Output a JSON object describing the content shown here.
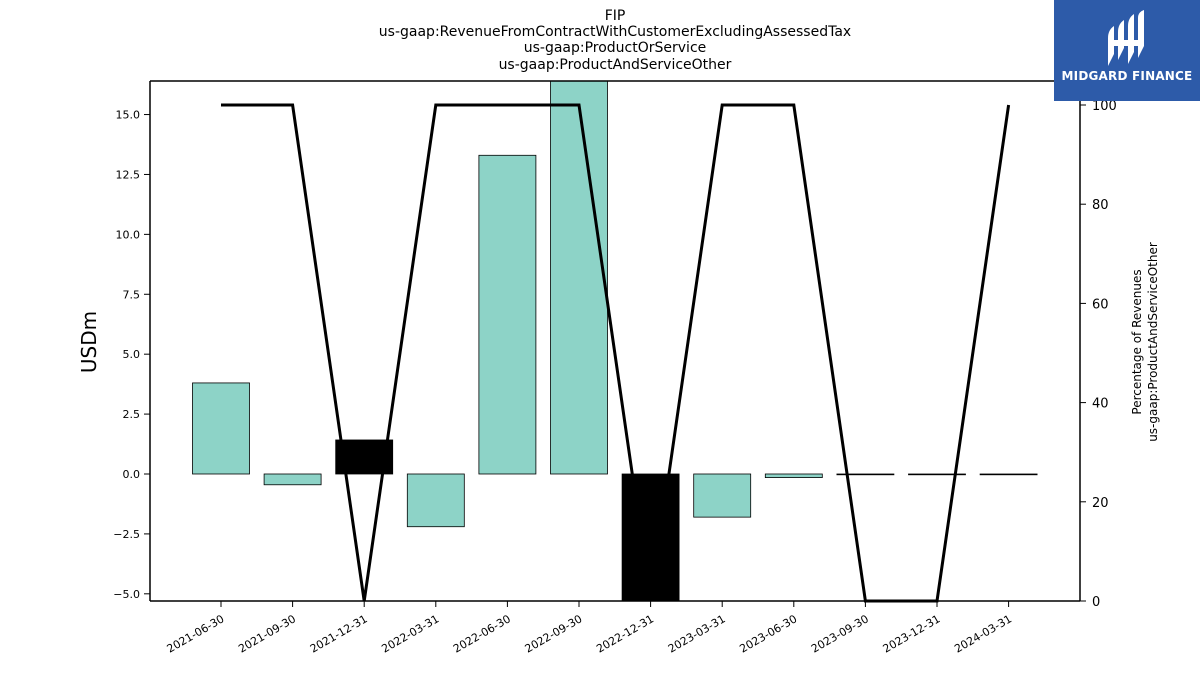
{
  "chart_data": {
    "type": "bar",
    "title_lines": [
      "FIP",
      "us-gaap:RevenueFromContractWithCustomerExcludingAssessedTax",
      "us-gaap:ProductOrService",
      "us-gaap:ProductAndServiceOther"
    ],
    "categories": [
      "2021-06-30",
      "2021-09-30",
      "2021-12-31",
      "2022-03-31",
      "2022-06-30",
      "2022-09-30",
      "2022-12-31",
      "2023-03-31",
      "2023-06-30",
      "2023-09-30",
      "2023-12-31",
      "2024-03-31"
    ],
    "series": [
      {
        "type": "bar",
        "axis": "left",
        "values": [
          3.8,
          -0.45,
          1.42,
          -2.2,
          13.3,
          16.4,
          -5.3,
          -1.8,
          -0.15,
          0.0,
          0.0,
          0.0
        ],
        "colors": [
          "#8dd3c7",
          "#8dd3c7",
          "#000000",
          "#8dd3c7",
          "#8dd3c7",
          "#8dd3c7",
          "#000000",
          "#8dd3c7",
          "#8dd3c7",
          "#8dd3c7",
          "#8dd3c7",
          "#8dd3c7"
        ]
      },
      {
        "type": "line",
        "axis": "right",
        "values": [
          100,
          100,
          0,
          100,
          100,
          100,
          0,
          100,
          100,
          0,
          0,
          100
        ],
        "color": "#000000"
      }
    ],
    "ylabel": "USDm",
    "ylabel_right_lines": [
      "Percentage of Revenues",
      "us-gaap:ProductAndServiceOther"
    ],
    "ylim": [
      -5.3,
      16.4
    ],
    "ylim_right": [
      0,
      100
    ],
    "yticks": [
      "15.0",
      "12.5",
      "10.0",
      "7.5",
      "5.0",
      "2.5",
      "0.0",
      "−2.5",
      "−5.0"
    ],
    "yticks_right": [
      "100",
      "80",
      "60",
      "40",
      "20",
      "0"
    ],
    "grid": false
  },
  "logo": {
    "text": "MIDGARD FINANCE",
    "icon": "midgard-logo-icon"
  }
}
